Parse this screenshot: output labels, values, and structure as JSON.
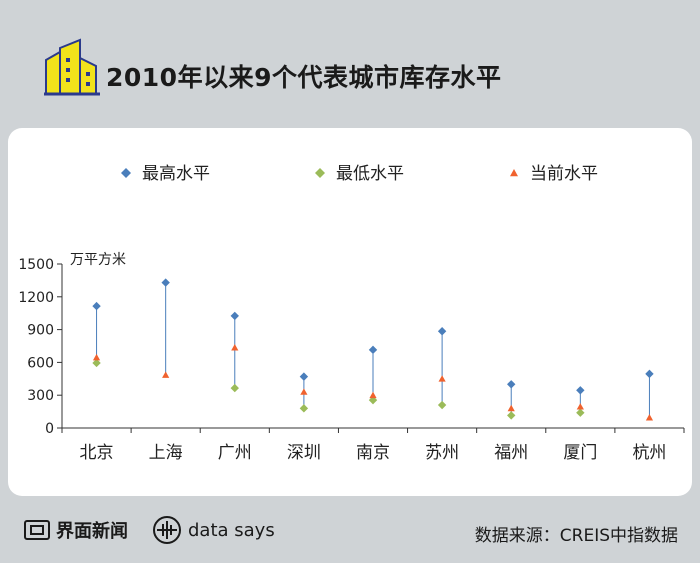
{
  "header": {
    "title": "2010年以来9个代表城市库存水平",
    "icon": "buildings-icon"
  },
  "chart_data": {
    "type": "scatter",
    "ylabel": "万平方米",
    "ylim": [
      0,
      1500
    ],
    "yticks": [
      0,
      300,
      600,
      900,
      1200,
      1500
    ],
    "categories": [
      "北京",
      "上海",
      "广州",
      "深圳",
      "南京",
      "苏州",
      "福州",
      "厦门",
      "杭州"
    ],
    "series": [
      {
        "name": "最高水平",
        "marker": "diamond",
        "color": "#4a7ebb",
        "values": [
          1115,
          1330,
          1025,
          470,
          715,
          885,
          400,
          345,
          495
        ]
      },
      {
        "name": "最低水平",
        "marker": "diamond",
        "color": "#9bbb59",
        "values": [
          595,
          null,
          365,
          180,
          255,
          210,
          115,
          140,
          null
        ]
      },
      {
        "name": "当前水平",
        "marker": "triangle",
        "color": "#f0622e",
        "values": [
          645,
          485,
          735,
          330,
          300,
          450,
          180,
          195,
          95
        ]
      }
    ],
    "range_line_color": "#4a7ebb",
    "legend_position": "top"
  },
  "footer": {
    "brand_name": "界面新闻",
    "brand2": "data says",
    "source": "数据来源：CREIS中指数据"
  }
}
